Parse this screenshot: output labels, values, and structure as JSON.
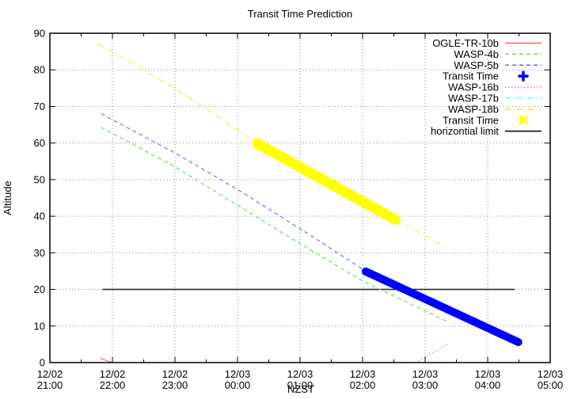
{
  "title": "Transit Time Prediction",
  "axes": {
    "ylabel": "Altitude",
    "xlabel": "NZST",
    "y_ticks": [
      0,
      10,
      20,
      30,
      40,
      50,
      60,
      70,
      80,
      90
    ],
    "x_ticks": [
      {
        "date": "12/02",
        "time": "21:00"
      },
      {
        "date": "12/02",
        "time": "22:00"
      },
      {
        "date": "12/02",
        "time": "23:00"
      },
      {
        "date": "12/03",
        "time": "00:00"
      },
      {
        "date": "12/03",
        "time": "01:00"
      },
      {
        "date": "12/03",
        "time": "02:00"
      },
      {
        "date": "12/03",
        "time": "03:00"
      },
      {
        "date": "12/03",
        "time": "04:00"
      },
      {
        "date": "12/03",
        "time": "05:00"
      }
    ]
  },
  "chart_data": {
    "type": "line",
    "title": "Transit Time Prediction",
    "xlabel": "NZST",
    "ylabel": "Altitude",
    "x_unit": "hours after 12/02 21:00 NZST",
    "xlim": [
      0,
      8
    ],
    "ylim": [
      0,
      90
    ],
    "grid": "dotted gray at every major tick on both axes, minor half-hour ticks on x axis",
    "legend_position": "top-right inside plot, no border",
    "series": [
      {
        "name": "OGLE-TR-10b",
        "kind": "line",
        "style": "solid",
        "color": "#ff6060",
        "points": [
          [
            0.8,
            1.2
          ],
          [
            1.0,
            0.0
          ]
        ]
      },
      {
        "name": "WASP-4b",
        "kind": "line",
        "style": "dashed",
        "color": "#55e055",
        "points": [
          [
            0.82,
            64.3
          ],
          [
            2.0,
            53.5
          ],
          [
            3.0,
            43.0
          ],
          [
            4.0,
            32.5
          ],
          [
            5.0,
            22.3
          ],
          [
            6.38,
            11.0
          ]
        ]
      },
      {
        "name": "WASP-5b",
        "kind": "line",
        "style": "dashed",
        "color": "#6666ff",
        "points": [
          [
            0.82,
            68.0
          ],
          [
            2.0,
            57.3
          ],
          [
            3.0,
            47.3
          ],
          [
            4.0,
            36.6
          ],
          [
            5.05,
            25.0
          ],
          [
            6.3,
            15.1
          ],
          [
            7.49,
            5.6
          ]
        ]
      },
      {
        "name": "Transit Time",
        "kind": "marker-band",
        "marker": "plus",
        "color": "#0000ff",
        "band_width": 10,
        "points": [
          [
            5.05,
            24.9
          ],
          [
            7.49,
            5.6
          ]
        ]
      },
      {
        "name": "WASP-16b",
        "kind": "line",
        "style": "dotted",
        "color": "#ff66ff",
        "points": [
          [
            5.85,
            0.0
          ],
          [
            6.38,
            5.2
          ]
        ]
      },
      {
        "name": "WASP-17b",
        "kind": "line",
        "style": "dashdot",
        "color": "#66ffff",
        "points": []
      },
      {
        "name": "WASP-18b",
        "kind": "line",
        "style": "dashdot",
        "color": "#eded3a",
        "points": [
          [
            0.78,
            87.0
          ],
          [
            2.0,
            75.0
          ],
          [
            3.32,
            60.0
          ],
          [
            4.4,
            49.8
          ],
          [
            5.53,
            39.0
          ],
          [
            6.35,
            31.4
          ]
        ]
      },
      {
        "name": "Transit Time",
        "kind": "marker-band",
        "marker": "x",
        "color": "#ffff00",
        "band_width": 13,
        "points": [
          [
            3.32,
            59.8
          ],
          [
            5.53,
            39.0
          ]
        ]
      },
      {
        "name": "horizontial limit",
        "kind": "line",
        "style": "solid",
        "color": "#2a2a2a",
        "points": [
          [
            0.84,
            20.0
          ],
          [
            7.43,
            20.0
          ]
        ]
      }
    ]
  }
}
